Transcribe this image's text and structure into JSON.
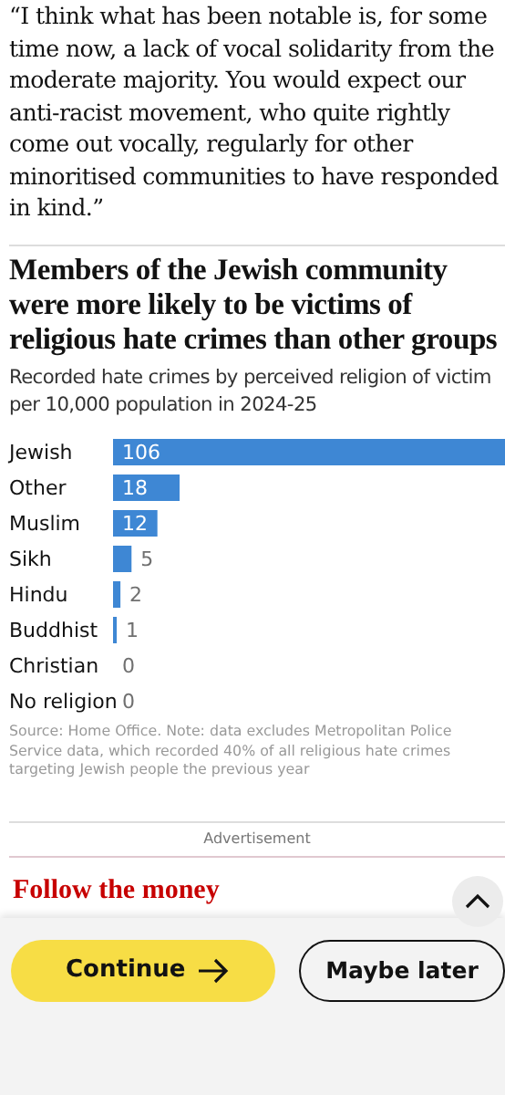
{
  "chart_data": {
    "type": "bar",
    "orientation": "horizontal",
    "title": "Members of the Jewish community were more likely to be victims of religious hate crimes than other groups",
    "subtitle": "Recorded hate crimes by perceived religion of victim per 10,000 population in 2024-25",
    "categories": [
      "Jewish",
      "Other",
      "Muslim",
      "Sikh",
      "Hindu",
      "Buddhist",
      "Christian",
      "No religion"
    ],
    "values": [
      106,
      18,
      12,
      5,
      2,
      1,
      0,
      0
    ],
    "color": "#3e87d4",
    "data_labels": true,
    "annotations": [
      "“I think what has been notable is, for some time now, a lack of vocal solidarity from the moderate majority. You would expect our anti-racist movement, who quite rightly come out vocally, regularly for other minoritised communities to have responded in kind.”",
      "Source: Home Office. Note: data excludes Metropolitan Police Service data, which recorded 40% of all religious hate crimes targeting Jewish people the previous year",
      "Advertisement",
      "Follow the money",
      "Continue",
      "Maybe later"
    ]
  }
}
